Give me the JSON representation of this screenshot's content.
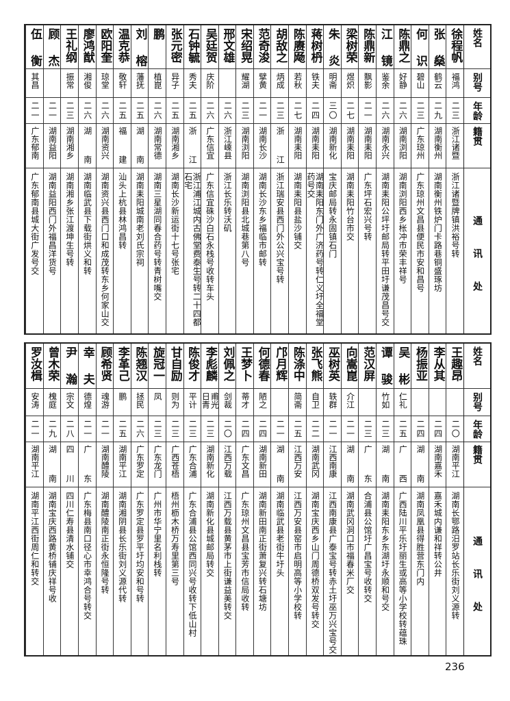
{
  "header": {
    "name": "姓名",
    "alias": "别号",
    "age": "年龄",
    "hometown": "籍贯",
    "address": "通讯处"
  },
  "tables": [
    {
      "rows": [
        {
          "name": "徐程帆",
          "alias": "福鸿",
          "age": "二三",
          "hometown": "浙江诸暨",
          "address": "浙江诸暨牌镇洪裕号转"
        },
        {
          "name": "张燊",
          "alias": "鹤云",
          "age": "二九",
          "hometown": "湖南衡州",
          "address": "湖南衡州铁炉门卡路巷铜盛琢坊"
        },
        {
          "name": "何识",
          "alias": "碧山",
          "age": "二三",
          "hometown": "广东琼州",
          "address": "广东琼州文昌县便民市安和昌号"
        },
        {
          "name": "陈鼎之",
          "alias": "好静",
          "age": "二六",
          "hometown": "湖南浏阳",
          "address": "湖南浏阳西乡枨冲市荣丰祥号"
        },
        {
          "name": "江镜",
          "alias": "鉴余",
          "age": "二六",
          "hometown": "湖南永兴",
          "address": "湖南耒阳公坪圩邮局转平田圩谦茂昌号交"
        },
        {
          "name": "陈鼎新",
          "alias": "飘影",
          "age": "二一",
          "hometown": "湖南耒阳",
          "address": "广东坪石宏兴号转"
        },
        {
          "name": "梁树荣",
          "alias": "煜炽",
          "age": "二七",
          "hometown": "湖南耒阳",
          "address": "湖南耒阳竹台市交"
        },
        {
          "name": "朱炎",
          "alias": "明斋",
          "age": "三〇",
          "hometown": "湖南新化",
          "address": "宝庆邮局转永固镇石门"
        },
        {
          "name": "蒋树枬",
          "alias": "铁夫",
          "age": "二四",
          "hometown": "湖南耒阳",
          "address": "湖南耒阳东门外广济药号转仁义圩全福堂药号交"
        },
        {
          "name": "陈赓飏",
          "alias": "若秋",
          "age": "二七",
          "hometown": "湖南耒阳",
          "address": "湖南耒阳县盐沙铺交"
        },
        {
          "name": "胡敌之",
          "alias": "炳成",
          "age": "二三",
          "hometown": "浙江",
          "address": "浙江瑞安县西门外公兴宝号转"
        },
        {
          "name": "范奇浚",
          "alias": "擘黄",
          "age": "二一",
          "hometown": "湖南长沙",
          "address": "湖南长沙东乡福临市邮转"
        },
        {
          "name": "宋绍晃",
          "alias": "耀湖",
          "age": "二三",
          "hometown": "湖南浏阳",
          "address": "湖南浏阳县北城巷第八号"
        },
        {
          "name": "邢文雄",
          "alias": "",
          "age": "二六",
          "hometown": "浙江嵊县",
          "address": "浙江长乐转沃矶"
        },
        {
          "name": "吴廷贺",
          "alias": "庆阶",
          "age": "二六",
          "hometown": "广东信宜",
          "address": "广东信宜硃沙白石永栈号收转车头"
        },
        {
          "name": "石钟毓",
          "alias": "秀夫",
          "age": "二五",
          "hometown": "浙江",
          "address": "浙江浦江城内古佛堂费泰生号转二十四都石宅"
        },
        {
          "name": "张元密",
          "alias": "异子",
          "age": "二五",
          "hometown": "湖南湘乡",
          "address": "湖南长沙新运街十七号张宅"
        },
        {
          "name": "鹏",
          "alias": "植崑",
          "age": "二六",
          "hometown": "湖南常德",
          "address": "湖南三星湖同春合药号转青树嘴交"
        },
        {
          "name": "刘榕",
          "alias": "藩抚",
          "age": "二五",
          "hometown": "湖南",
          "address": "湖南耒阳城南老刘氏宗祠"
        },
        {
          "name": "温克恭",
          "alias": "敬轩",
          "age": "二五",
          "hometown": "福建",
          "address": "汕头上杭县林鸿昌转"
        },
        {
          "name": "欧阳奎",
          "alias": "琼堂",
          "age": "二六",
          "hometown": "湖南资兴",
          "address": "湖南资兴县西门口和成茂转东乡何家山交"
        },
        {
          "name": "廖鸿猷",
          "alias": "湘俊",
          "age": "二六",
          "hometown": "湖南",
          "address": "湖南临武县下载街烘义和转"
        },
        {
          "name": "王礼纲",
          "alias": "振常",
          "age": "二三",
          "hometown": "湖南湘乡",
          "address": "湖南湘乡张江渡坤生号转"
        },
        {
          "name": "顾杰",
          "alias": "",
          "age": "二一",
          "hometown": "湖南益阳",
          "address": "湖南益阳西门外福昌洋货号"
        },
        {
          "name": "伍衡",
          "alias": "其昌",
          "age": "二一",
          "hometown": "广东郁南",
          "address": "广东郁南县城大街广发号交"
        }
      ]
    },
    {
      "rows": [
        {
          "name": "王趣昂",
          "alias": "",
          "age": "二〇",
          "hometown": "湖南平江",
          "address": "湖南长鄂路汨罗站长乐街刘义源转"
        },
        {
          "name": "李从其",
          "alias": "",
          "age": "二四",
          "hometown": "湖南嘉禾",
          "address": "嘉禾城内谦和祥转公井"
        },
        {
          "name": "杨振亚",
          "alias": "",
          "age": "二四",
          "hometown": "湖南",
          "address": "湖南凤凰县得胜营东门内"
        },
        {
          "name": "吴彬",
          "alias": "仁礼",
          "age": "二五",
          "hometown": "广西",
          "address": "广西陆川平乐圩丽生或高等小学校转蕴珠"
        },
        {
          "name": "谭骏",
          "alias": "竹如",
          "age": "二三",
          "hometown": "湖南",
          "address": "湖南耒阳东乡东湖圩永顺和号交"
        },
        {
          "name": "范汉屏",
          "alias": "",
          "age": "二三",
          "hometown": "广东",
          "address": "合浦县公馆圩广昌宝号收转交"
        },
        {
          "name": "向嵩崑",
          "alias": "介江",
          "age": "二一",
          "hometown": "湖南",
          "address": "湖南武冈洞口市福春米厂交"
        },
        {
          "name": "巫树英",
          "alias": "轶群",
          "age": "二一",
          "hometown": "江西南康",
          "address": "江西南康县广泰宝号转赤土圩巫万兴宝号交"
        },
        {
          "name": "张飞熊",
          "alias": "自卫",
          "age": "二二",
          "hometown": "湖南武冈",
          "address": "湖南宝庆西乡山门周德桥双发号转交"
        },
        {
          "name": "陈涤中",
          "alias": "简斋",
          "age": "二五",
          "hometown": "江西万安",
          "address": "江西万安县窑市启明高等小学校转"
        },
        {
          "name": "邝月辉",
          "alias": "",
          "age": "二一",
          "hometown": "湖南",
          "address": "湖南临武县老街牛圩头"
        },
        {
          "name": "何德春",
          "alias": "陋之",
          "age": "二四",
          "hometown": "湖南新田",
          "address": "湖南新田南正街萧复兴转石塘坊"
        },
        {
          "name": "王梦卜",
          "alias": "蒂才",
          "age": "二四",
          "hometown": "广东文昌",
          "address": "广东琼州文昌县宝芳市信局收转"
        },
        {
          "name": "刘佩之",
          "alias": "剑裁",
          "age": "二〇",
          "hometown": "江西万载",
          "address": "江西万载县黄茅市上街谦益美转交"
        },
        {
          "name": "李彪麟",
          "alias": "甫光日青",
          "age": "二三",
          "hometown": "湖南新化",
          "address": "湖南新化县城邮局转交"
        },
        {
          "name": "陈俊才",
          "alias": "平计",
          "age": "二三",
          "hometown": "广东合浦",
          "address": "广东合浦县公馆西同兴号收转下低山村"
        },
        {
          "name": "甘自励",
          "alias": "则为",
          "age": "二三",
          "hometown": "广西苍梧",
          "address": "梧州枥木桥万寿里第三号"
        },
        {
          "name": "旋冠一",
          "alias": "凤",
          "age": "二三",
          "hometown": "广东龙门",
          "address": "广州市华宁里名利栈转"
        },
        {
          "name": "陈翘汉",
          "alias": "拯民",
          "age": "二六",
          "hometown": "广东罗定",
          "address": "广东罗定县罗平圩均安和号转"
        },
        {
          "name": "李革己",
          "alias": "鹏",
          "age": "二五",
          "hometown": "湖南平江",
          "address": "湖南湘阴县长乐街刘义源代转"
        },
        {
          "name": "顾希贤",
          "alias": "魂游",
          "age": "二一",
          "hometown": "湖南醴陵",
          "address": "湖南醴陵南正街永恒隆号转"
        },
        {
          "name": "幸夫",
          "alias": "德煌",
          "age": "二一",
          "hometown": "广东",
          "address": "广东梅县南口径心市幸鸿合号转交"
        },
        {
          "name": "尹瀚",
          "alias": "宗文",
          "age": "二八",
          "hometown": "四川",
          "address": "四川仁寿县清水铺交"
        },
        {
          "name": "曾木荣",
          "alias": "槐庭",
          "age": "二九",
          "hometown": "湖南",
          "address": "湖南宝庆西路黄桥铺庆祥号收"
        },
        {
          "name": "罗汝楫",
          "alias": "安涛",
          "age": "二一",
          "hometown": "湖南平江",
          "address": "湖南平江西街周仁和转交"
        }
      ]
    }
  ],
  "page_number": "236"
}
